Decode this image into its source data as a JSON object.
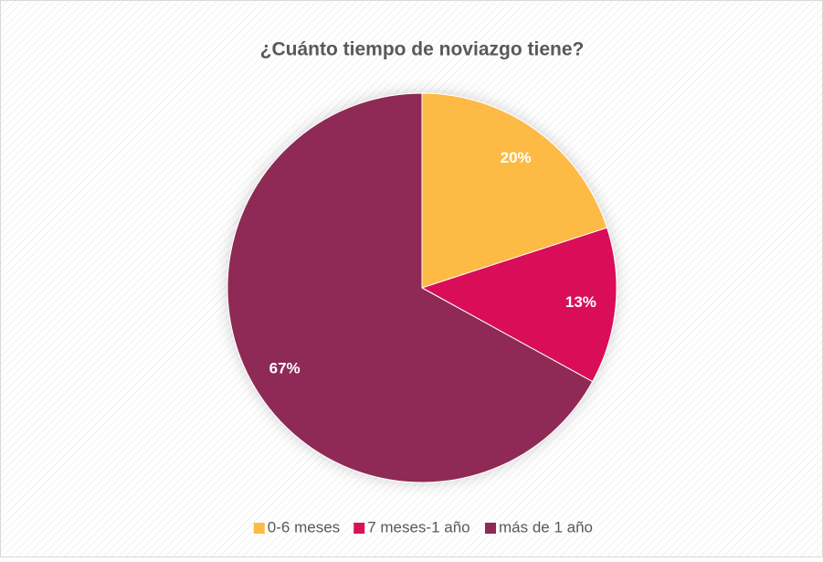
{
  "chart_data": {
    "type": "pie",
    "title": "¿Cuánto tiempo de noviazgo tiene?",
    "categories": [
      "0-6 meses",
      "7 meses-1 año",
      "más de 1 año"
    ],
    "values": [
      20,
      13,
      67
    ],
    "value_labels": [
      "20%",
      "13%",
      "67%"
    ],
    "colors": [
      "#FDBA45",
      "#D91158",
      "#8E2A55"
    ],
    "legend": "bottom"
  }
}
